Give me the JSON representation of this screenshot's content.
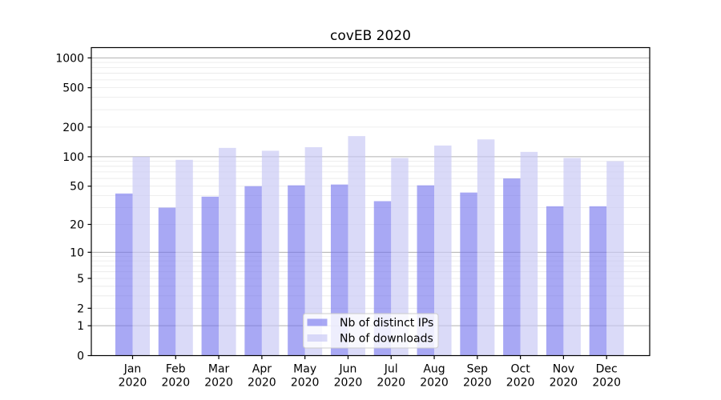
{
  "title": "covEB 2020",
  "chart_data": {
    "type": "bar",
    "title": "covEB 2020",
    "categories": [
      "Jan",
      "Feb",
      "Mar",
      "Apr",
      "May",
      "Jun",
      "Jul",
      "Aug",
      "Sep",
      "Oct",
      "Nov",
      "Dec"
    ],
    "xtick_second_line": "2020",
    "series": [
      {
        "name": "Nb of distinct IPs",
        "color": "#7373ee",
        "opacity": 0.62,
        "values": [
          42,
          30,
          39,
          50,
          51,
          52,
          35,
          51,
          43,
          60,
          31,
          31
        ]
      },
      {
        "name": "Nb of downloads",
        "color": "#c9c9f4",
        "opacity": 0.68,
        "values": [
          100,
          93,
          123,
          115,
          125,
          162,
          97,
          130,
          150,
          112,
          97,
          90
        ]
      }
    ],
    "yscale": "log1p",
    "ylim": [
      0,
      1270
    ],
    "ytick_values": [
      0,
      1,
      2,
      5,
      10,
      20,
      50,
      100,
      200,
      500,
      1000
    ],
    "grid": true,
    "legend_position": "lower center inside",
    "colors": {
      "major_grid": "#b0b0b0",
      "minor_grid": "#e8e8e8",
      "axis": "#000000",
      "background": "#ffffff"
    }
  }
}
